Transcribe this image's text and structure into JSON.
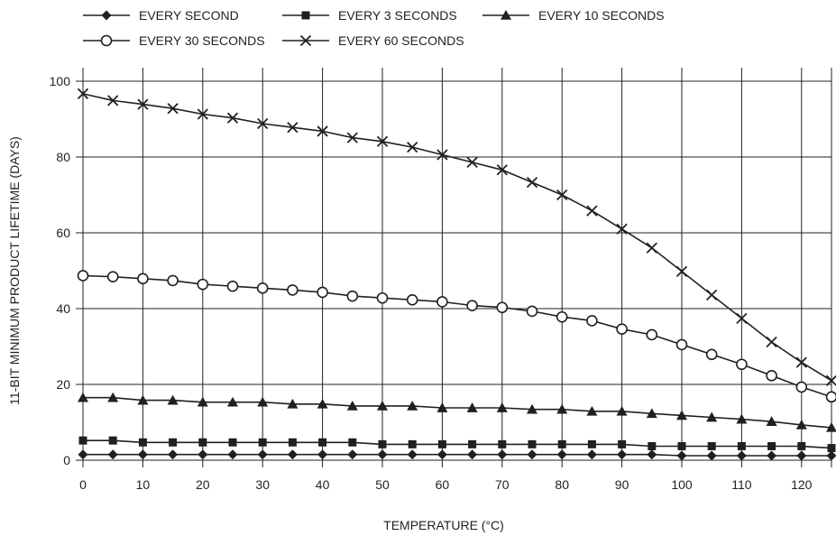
{
  "chart_data": {
    "type": "line",
    "xlabel": "TEMPERATURE (°C)",
    "ylabel": "11-BIT MINIMUM PRODUCT LIFETIME (DAYS)",
    "xlim": [
      0,
      125
    ],
    "ylim": [
      0,
      100
    ],
    "xticks": [
      0,
      10,
      20,
      30,
      40,
      50,
      60,
      70,
      80,
      90,
      100,
      110,
      120
    ],
    "yticks": [
      0,
      20,
      40,
      60,
      80,
      100
    ],
    "grid": true,
    "legend_position": "top",
    "line_color": "#231f20",
    "x": [
      0,
      5,
      10,
      15,
      20,
      25,
      30,
      35,
      40,
      45,
      50,
      55,
      60,
      65,
      70,
      75,
      80,
      85,
      90,
      95,
      100,
      105,
      110,
      115,
      120,
      125
    ],
    "series": [
      {
        "name": "EVERY SECOND",
        "marker": "diamond",
        "values": [
          1.5,
          1.5,
          1.5,
          1.5,
          1.5,
          1.5,
          1.5,
          1.5,
          1.5,
          1.5,
          1.5,
          1.5,
          1.5,
          1.5,
          1.5,
          1.5,
          1.5,
          1.5,
          1.5,
          1.5,
          1.2,
          1.2,
          1.2,
          1.2,
          1.2,
          1.2
        ]
      },
      {
        "name": "EVERY 3 SECONDS",
        "marker": "square",
        "values": [
          5.2,
          5.2,
          4.7,
          4.7,
          4.7,
          4.7,
          4.7,
          4.7,
          4.7,
          4.7,
          4.2,
          4.2,
          4.2,
          4.2,
          4.2,
          4.2,
          4.2,
          4.2,
          4.2,
          3.7,
          3.7,
          3.7,
          3.7,
          3.7,
          3.7,
          3.2
        ]
      },
      {
        "name": "EVERY 10 SECONDS",
        "marker": "triangle",
        "values": [
          16.5,
          16.5,
          15.8,
          15.8,
          15.3,
          15.3,
          15.3,
          14.8,
          14.8,
          14.3,
          14.3,
          14.3,
          13.8,
          13.8,
          13.8,
          13.4,
          13.4,
          12.9,
          12.9,
          12.3,
          11.8,
          11.3,
          10.8,
          10.2,
          9.3,
          8.6
        ]
      },
      {
        "name": "EVERY 30 SECONDS",
        "marker": "circle",
        "values": [
          48.7,
          48.4,
          47.9,
          47.4,
          46.4,
          45.9,
          45.4,
          44.9,
          44.3,
          43.3,
          42.8,
          42.3,
          41.8,
          40.8,
          40.3,
          39.3,
          37.8,
          36.8,
          34.6,
          33.1,
          30.5,
          27.9,
          25.3,
          22.3,
          19.3,
          16.7
        ]
      },
      {
        "name": "EVERY 60 SECONDS",
        "marker": "x",
        "values": [
          96.7,
          94.9,
          93.9,
          92.8,
          91.3,
          90.3,
          88.8,
          87.8,
          86.8,
          85.1,
          84.1,
          82.6,
          80.6,
          78.6,
          76.6,
          73.3,
          70.0,
          65.8,
          61.0,
          56.0,
          49.8,
          43.6,
          37.4,
          31.2,
          25.8,
          21.0
        ]
      }
    ]
  }
}
